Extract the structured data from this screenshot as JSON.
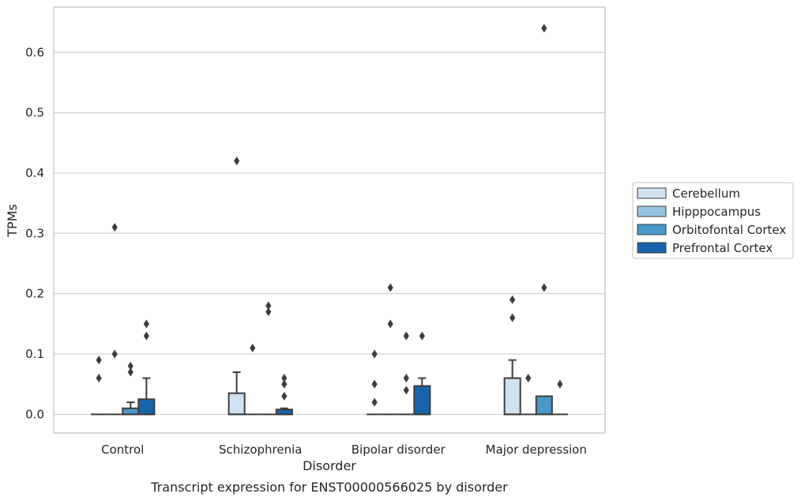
{
  "chart_data": {
    "type": "box",
    "title": "",
    "caption": "Transcript expression for ENST00000566025 by disorder",
    "xlabel": "Disorder",
    "ylabel": "TPMs",
    "ylim": [
      -0.031,
      0.675
    ],
    "yticks": [
      0.0,
      0.1,
      0.2,
      0.3,
      0.4,
      0.5,
      0.6
    ],
    "ytick_labels": [
      "0.0",
      "0.1",
      "0.2",
      "0.3",
      "0.4",
      "0.5",
      "0.6"
    ],
    "grid": "horizontal",
    "legend_position": "right",
    "categories": [
      "Control",
      "Schizophrenia",
      "Bipolar disorder",
      "Major depression"
    ],
    "series": [
      {
        "name": "Cerebellum",
        "color": "#d0e1f2",
        "boxes": [
          {
            "q1": 0,
            "median": 0,
            "q3": 0,
            "whisker_low": 0,
            "whisker_high": 0,
            "outliers": [
              0.06,
              0.09
            ]
          },
          {
            "q1": 0,
            "median": 0,
            "q3": 0.035,
            "whisker_low": 0,
            "whisker_high": 0.07,
            "outliers": [
              0.42
            ]
          },
          {
            "q1": 0,
            "median": 0,
            "q3": 0,
            "whisker_low": 0,
            "whisker_high": 0,
            "outliers": [
              0.02,
              0.05,
              0.1
            ]
          },
          {
            "q1": 0,
            "median": 0,
            "q3": 0.06,
            "whisker_low": 0,
            "whisker_high": 0.09,
            "outliers": [
              0.16,
              0.19
            ]
          }
        ]
      },
      {
        "name": "Hipppocampus",
        "color": "#94c4df",
        "boxes": [
          {
            "q1": 0,
            "median": 0,
            "q3": 0,
            "whisker_low": 0,
            "whisker_high": 0,
            "outliers": [
              0.1,
              0.31
            ]
          },
          {
            "q1": 0,
            "median": 0,
            "q3": 0,
            "whisker_low": 0,
            "whisker_high": 0,
            "outliers": [
              0.11
            ]
          },
          {
            "q1": 0,
            "median": 0,
            "q3": 0,
            "whisker_low": 0,
            "whisker_high": 0,
            "outliers": [
              0.15,
              0.21
            ]
          },
          {
            "q1": 0,
            "median": 0,
            "q3": 0,
            "whisker_low": 0,
            "whisker_high": 0,
            "outliers": [
              0.06
            ]
          }
        ]
      },
      {
        "name": "Orbitofontal Cortex",
        "color": "#4a98c9",
        "boxes": [
          {
            "q1": 0,
            "median": 0,
            "q3": 0.01,
            "whisker_low": 0,
            "whisker_high": 0.02,
            "outliers": [
              0.07,
              0.08
            ]
          },
          {
            "q1": 0,
            "median": 0,
            "q3": 0,
            "whisker_low": 0,
            "whisker_high": 0,
            "outliers": [
              0.17,
              0.18
            ]
          },
          {
            "q1": 0,
            "median": 0,
            "q3": 0,
            "whisker_low": 0,
            "whisker_high": 0,
            "outliers": [
              0.04,
              0.06,
              0.13
            ]
          },
          {
            "q1": 0,
            "median": 0,
            "q3": 0.03,
            "whisker_low": 0,
            "whisker_high": 0.03,
            "outliers": [
              0.21,
              0.64
            ]
          }
        ]
      },
      {
        "name": "Prefrontal Cortex",
        "color": "#1764ab",
        "boxes": [
          {
            "q1": 0,
            "median": 0,
            "q3": 0.025,
            "whisker_low": 0,
            "whisker_high": 0.06,
            "outliers": [
              0.13,
              0.15
            ]
          },
          {
            "q1": 0,
            "median": 0,
            "q3": 0.008,
            "whisker_low": 0,
            "whisker_high": 0.01,
            "outliers": [
              0.03,
              0.05,
              0.06
            ]
          },
          {
            "q1": 0,
            "median": 0,
            "q3": 0.047,
            "whisker_low": 0,
            "whisker_high": 0.06,
            "outliers": [
              0.13
            ]
          },
          {
            "q1": 0,
            "median": 0,
            "q3": 0,
            "whisker_low": 0,
            "whisker_high": 0,
            "outliers": [
              0.05
            ]
          }
        ]
      }
    ]
  }
}
